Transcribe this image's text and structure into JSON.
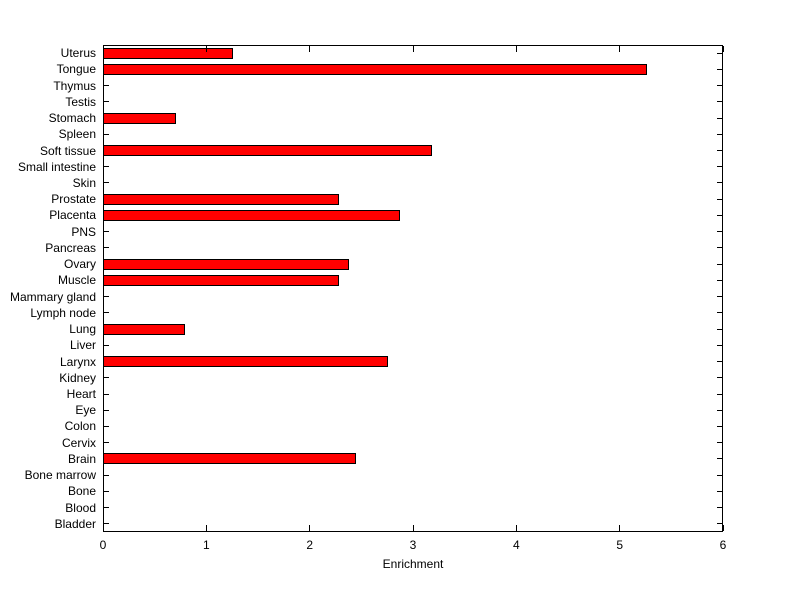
{
  "chart_data": {
    "type": "bar",
    "orientation": "horizontal",
    "title": "",
    "xlabel": "Enrichment",
    "ylabel": "",
    "xlim": [
      0,
      6
    ],
    "xticks": [
      0,
      1,
      2,
      3,
      4,
      5,
      6
    ],
    "grid": false,
    "legend": "none",
    "bar_color": "#ff0000",
    "bar_edge_color": "#000000",
    "background": "#ffffff",
    "categories": [
      "Uterus",
      "Tongue",
      "Thymus",
      "Testis",
      "Stomach",
      "Spleen",
      "Soft tissue",
      "Small intestine",
      "Skin",
      "Prostate",
      "Placenta",
      "PNS",
      "Pancreas",
      "Ovary",
      "Muscle",
      "Mammary gland",
      "Lymph node",
      "Lung",
      "Liver",
      "Larynx",
      "Kidney",
      "Heart",
      "Eye",
      "Colon",
      "Cervix",
      "Brain",
      "Bone marrow",
      "Bone",
      "Blood",
      "Bladder"
    ],
    "values": [
      1.26,
      5.26,
      0,
      0,
      0.71,
      0,
      3.18,
      0,
      0,
      2.28,
      2.87,
      0,
      0,
      2.38,
      2.28,
      0,
      0,
      0.79,
      0,
      2.76,
      0,
      0,
      0,
      0,
      0,
      2.45,
      0,
      0,
      0,
      0
    ]
  }
}
